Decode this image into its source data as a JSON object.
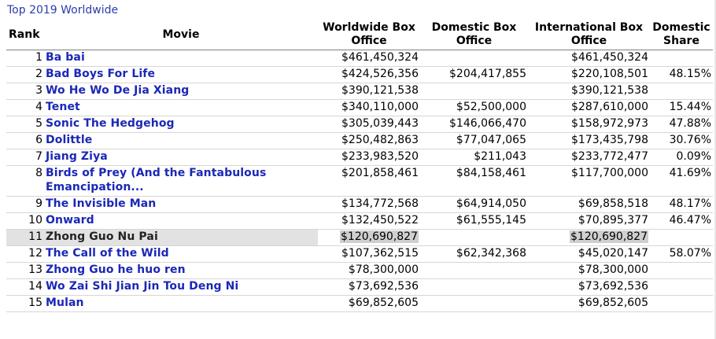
{
  "caption": "Top 2019 Worldwide",
  "headers": {
    "rank": "Rank",
    "movie": "Movie",
    "worldwide_1": "Worldwide Box",
    "worldwide_2": "Office",
    "domestic_1": "Domestic Box",
    "domestic_2": "Office",
    "international_1": "International Box",
    "international_2": "Office",
    "share_1": "Domestic",
    "share_2": "Share"
  },
  "rows": [
    {
      "rank": "1",
      "movie": "Ba bai",
      "worldwide": "$461,450,324",
      "domestic": "",
      "international": "$461,450,324",
      "share": ""
    },
    {
      "rank": "2",
      "movie": "Bad Boys For Life",
      "worldwide": "$424,526,356",
      "domestic": "$204,417,855",
      "international": "$220,108,501",
      "share": "48.15%"
    },
    {
      "rank": "3",
      "movie": "Wo He Wo De Jia Xiang",
      "worldwide": "$390,121,538",
      "domestic": "",
      "international": "$390,121,538",
      "share": ""
    },
    {
      "rank": "4",
      "movie": "Tenet",
      "worldwide": "$340,110,000",
      "domestic": "$52,500,000",
      "international": "$287,610,000",
      "share": "15.44%"
    },
    {
      "rank": "5",
      "movie": "Sonic The Hedgehog",
      "worldwide": "$305,039,443",
      "domestic": "$146,066,470",
      "international": "$158,972,973",
      "share": "47.88%"
    },
    {
      "rank": "6",
      "movie": "Dolittle",
      "worldwide": "$250,482,863",
      "domestic": "$77,047,065",
      "international": "$173,435,798",
      "share": "30.76%"
    },
    {
      "rank": "7",
      "movie": "Jiang Ziya",
      "worldwide": "$233,983,520",
      "domestic": "$211,043",
      "international": "$233,772,477",
      "share": "0.09%"
    },
    {
      "rank": "8",
      "movie": "Birds of Prey (And the Fantabulous Emancipation...",
      "worldwide": "$201,858,461",
      "domestic": "$84,158,461",
      "international": "$117,700,000",
      "share": "41.69%"
    },
    {
      "rank": "9",
      "movie": "The Invisible Man",
      "worldwide": "$134,772,568",
      "domestic": "$64,914,050",
      "international": "$69,858,518",
      "share": "48.17%"
    },
    {
      "rank": "10",
      "movie": "Onward",
      "worldwide": "$132,450,522",
      "domestic": "$61,555,145",
      "international": "$70,895,377",
      "share": "46.47%"
    },
    {
      "rank": "11",
      "movie": "Zhong Guo Nu Pai",
      "worldwide": "$120,690,827",
      "domestic": "",
      "international": "$120,690,827",
      "share": "",
      "highlighted": true
    },
    {
      "rank": "12",
      "movie": "The Call of the Wild",
      "worldwide": "$107,362,515",
      "domestic": "$62,342,368",
      "international": "$45,020,147",
      "share": "58.07%"
    },
    {
      "rank": "13",
      "movie": "Zhong Guo he huo ren",
      "worldwide": "$78,300,000",
      "domestic": "",
      "international": "$78,300,000",
      "share": ""
    },
    {
      "rank": "14",
      "movie": "Wo Zai Shi Jian Jin Tou Deng Ni",
      "worldwide": "$73,692,536",
      "domestic": "",
      "international": "$73,692,536",
      "share": ""
    },
    {
      "rank": "15",
      "movie": "Mulan",
      "worldwide": "$69,852,605",
      "domestic": "",
      "international": "$69,852,605",
      "share": ""
    }
  ],
  "colors": {
    "link": "#1b28b5",
    "caption": "#2b3cab",
    "highlight_row": "#e2e2e2",
    "highlight_cell": "#cfcfcf"
  }
}
